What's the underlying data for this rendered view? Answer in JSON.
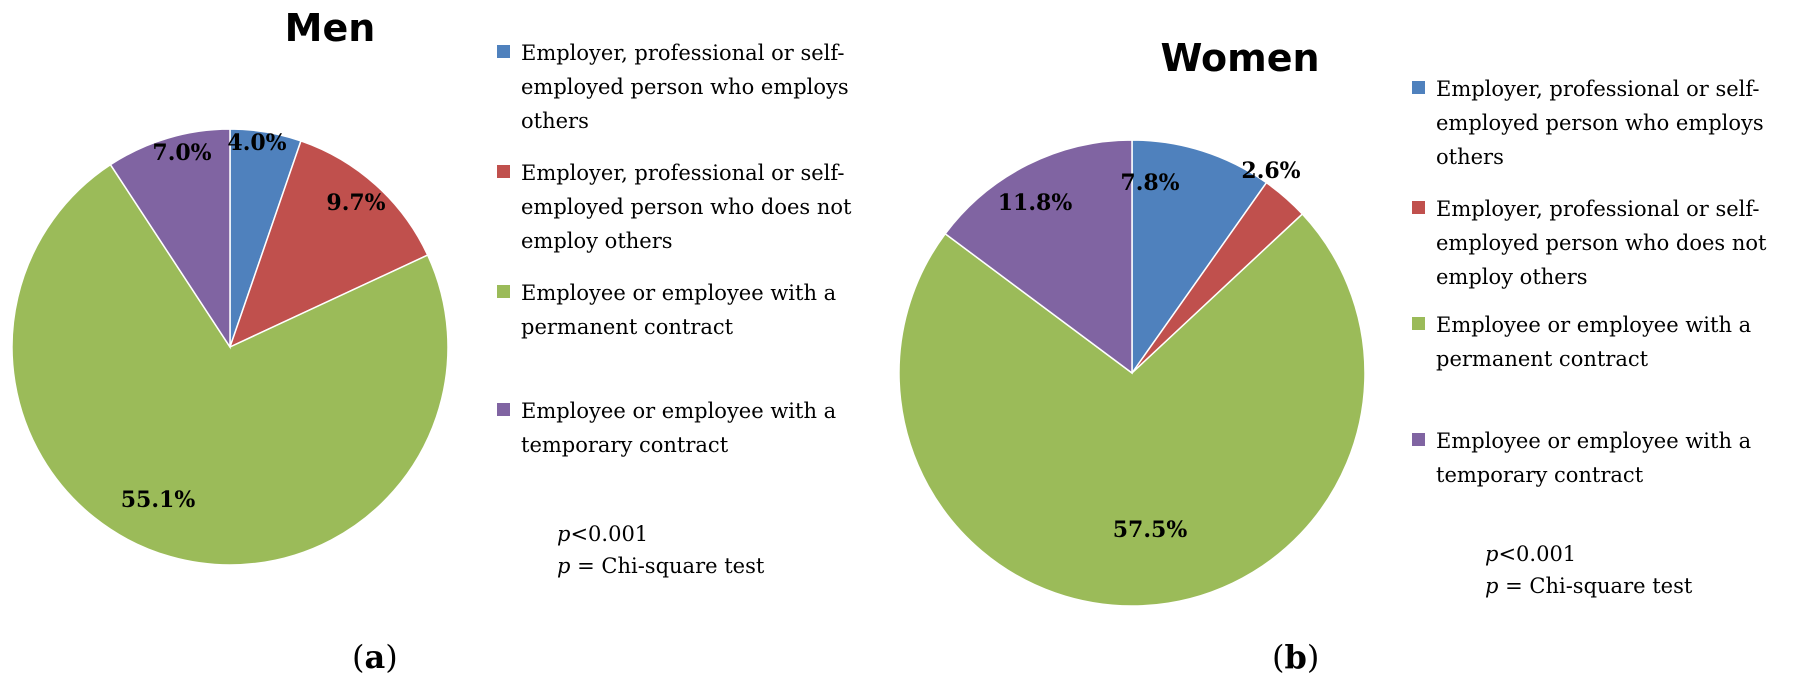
{
  "chart_data": [
    {
      "type": "pie",
      "title": "Men",
      "panel_label": "a",
      "categories": [
        "Employer, professional or self-employed person who employs others",
        "Employer, professional or self-employed person who does not employ others",
        "Employee or employee with a permanent contract",
        "Employee or employee with a temporary contract"
      ],
      "values": [
        4.0,
        9.7,
        55.1,
        7.0
      ],
      "value_labels": [
        "4.0%",
        "9.7%",
        "55.1%",
        "7.0%"
      ],
      "colors": [
        "#4F81BD",
        "#C0504D",
        "#9BBB59",
        "#8064A2"
      ],
      "legend": {
        "placement": "right",
        "entries": [
          "Employer, professional or self-employed person who employs others",
          "Employer, professional or self-employed person who does not employ others",
          "Employee or employee with a permanent contract",
          "Employee or employee with a temporary contract"
        ]
      },
      "note_line1_var": "p",
      "note_line1_rest": "<0.001",
      "note_line2_var": "p",
      "note_line2_rest": " = Chi-square test"
    },
    {
      "type": "pie",
      "title": "Women",
      "panel_label": "b",
      "categories": [
        "Employer, professional or self-employed person who employs others",
        "Employer, professional or self-employed person who does not employ others",
        "Employee or employee with a permanent contract",
        "Employee or employee with a temporary contract"
      ],
      "values": [
        7.8,
        2.6,
        57.5,
        11.8
      ],
      "value_labels": [
        "7.8%",
        "2.6%",
        "57.5%",
        "11.8%"
      ],
      "colors": [
        "#4F81BD",
        "#C0504D",
        "#9BBB59",
        "#8064A2"
      ],
      "legend": {
        "placement": "right",
        "entries": [
          "Employer, professional or self-employed person who employs others",
          "Employer, professional or self-employed person who does not employ others",
          "Employee or employee with a permanent contract",
          "Employee or employee with a temporary contract"
        ]
      },
      "note_line1_var": "p",
      "note_line1_rest": "<0.001",
      "note_line2_var": "p",
      "note_line2_rest": " = Chi-square test"
    }
  ]
}
